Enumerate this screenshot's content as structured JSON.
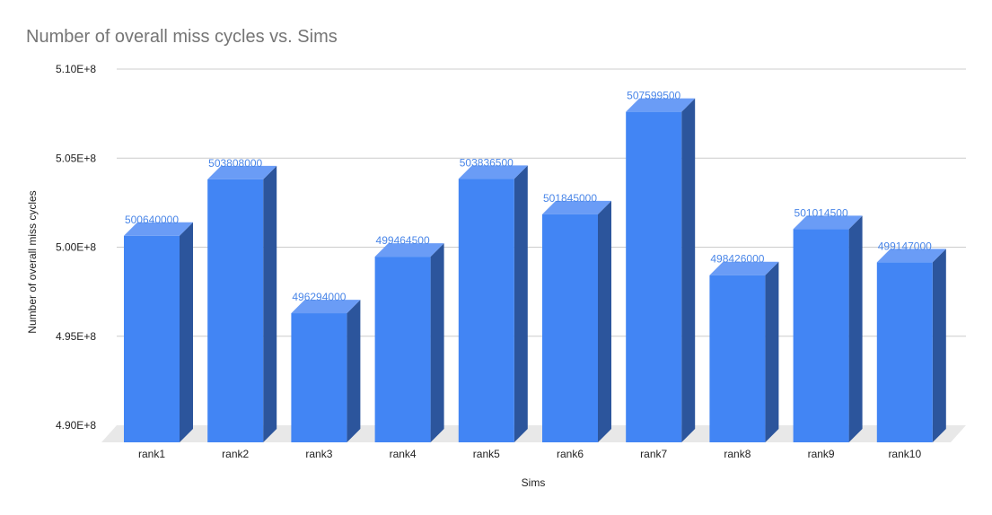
{
  "chart_data": {
    "type": "bar",
    "title": "Number of overall miss cycles vs. Sims",
    "xlabel": "Sims",
    "ylabel": "Number of overall miss cycles",
    "categories": [
      "rank1",
      "rank2",
      "rank3",
      "rank4",
      "rank5",
      "rank6",
      "rank7",
      "rank8",
      "rank9",
      "rank10"
    ],
    "values": [
      500640000,
      503808000,
      496294000,
      499464500,
      503836500,
      501845000,
      507599500,
      498426000,
      501014500,
      499147000
    ],
    "data_labels": [
      "500640000",
      "503808000",
      "496294000",
      "499464500",
      "503836500",
      "501845000",
      "507599500",
      "498426000",
      "501014500",
      "499147000"
    ],
    "ylim": [
      490000000,
      510000000
    ],
    "yticks": [
      490000000,
      495000000,
      500000000,
      505000000,
      510000000
    ],
    "ytick_labels": [
      "4.90E+8",
      "4.95E+8",
      "5.00E+8",
      "5.05E+8",
      "5.10E+8"
    ],
    "grid": true,
    "legend": "none",
    "style": "3d",
    "colors": {
      "bar_front": "#4285f4",
      "bar_side": "#2c559c",
      "bar_top": "#6a9cf6",
      "label": "#4a86e8",
      "grid": "#cccccc",
      "floor": "#e8e8e8"
    }
  }
}
